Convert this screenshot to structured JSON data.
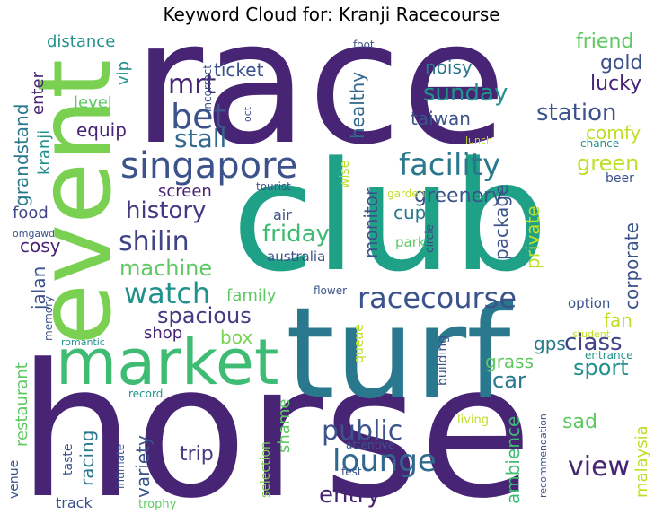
{
  "chart_data": {
    "type": "wordcloud",
    "title": "Keyword Cloud for: Kranji Racecourse",
    "words": [
      {
        "text": "race",
        "weight": 100,
        "color": "#482475"
      },
      {
        "text": "horse",
        "weight": 98,
        "color": "#482475"
      },
      {
        "text": "club",
        "weight": 85,
        "color": "#1fa187"
      },
      {
        "text": "turf",
        "weight": 82,
        "color": "#2a788e"
      },
      {
        "text": "event",
        "weight": 70,
        "color": "#7ad151"
      },
      {
        "text": "market",
        "weight": 52,
        "color": "#3fbc73"
      },
      {
        "text": "singapore",
        "weight": 34,
        "color": "#3b528b"
      },
      {
        "text": "bet",
        "weight": 32,
        "color": "#3b528b"
      },
      {
        "text": "facility",
        "weight": 30,
        "color": "#2a788e"
      },
      {
        "text": "racecourse",
        "weight": 30,
        "color": "#3b528b"
      },
      {
        "text": "watch",
        "weight": 30,
        "color": "#21918c"
      },
      {
        "text": "lounge",
        "weight": 29,
        "color": "#31688e"
      },
      {
        "text": "mrt",
        "weight": 28,
        "color": "#482475"
      },
      {
        "text": "station",
        "weight": 26,
        "color": "#3b528b"
      },
      {
        "text": "shilin",
        "weight": 28,
        "color": "#414487"
      },
      {
        "text": "public",
        "weight": 26,
        "color": "#3b528b"
      },
      {
        "text": "stall",
        "weight": 26,
        "color": "#31688e"
      },
      {
        "text": "history",
        "weight": 24,
        "color": "#443983"
      },
      {
        "text": "friday",
        "weight": 24,
        "color": "#3fbc73"
      },
      {
        "text": "machine",
        "weight": 23,
        "color": "#5ec962"
      },
      {
        "text": "sunday",
        "weight": 24,
        "color": "#21918c"
      },
      {
        "text": "class",
        "weight": 24,
        "color": "#414487"
      },
      {
        "text": "view",
        "weight": 26,
        "color": "#482475"
      },
      {
        "text": "spacious",
        "weight": 22,
        "color": "#443983"
      },
      {
        "text": "entry",
        "weight": 24,
        "color": "#482475"
      },
      {
        "text": "car",
        "weight": 22,
        "color": "#2a788e"
      },
      {
        "text": "sport",
        "weight": 22,
        "color": "#21918c"
      },
      {
        "text": "green",
        "weight": 22,
        "color": "#bddf26"
      },
      {
        "text": "greenery",
        "weight": 20,
        "color": "#3b528b"
      },
      {
        "text": "cup",
        "weight": 18,
        "color": "#2a788e"
      },
      {
        "text": "taiwan",
        "weight": 18,
        "color": "#3b528b"
      },
      {
        "text": "comfy",
        "weight": 19,
        "color": "#bddf26"
      },
      {
        "text": "friend",
        "weight": 19,
        "color": "#5ec962"
      },
      {
        "text": "gold",
        "weight": 19,
        "color": "#3b528b"
      },
      {
        "text": "lucky",
        "weight": 19,
        "color": "#482475"
      },
      {
        "text": "noisy",
        "weight": 18,
        "color": "#2a788e"
      },
      {
        "text": "trip",
        "weight": 20,
        "color": "#443983"
      },
      {
        "text": "family",
        "weight": 18,
        "color": "#5ec962"
      },
      {
        "text": "box",
        "weight": 18,
        "color": "#7ad151"
      },
      {
        "text": "sad",
        "weight": 18,
        "color": "#5ec962"
      },
      {
        "text": "ambience",
        "weight": 18,
        "color": "#3fbc73"
      },
      {
        "text": "grass",
        "weight": 17,
        "color": "#5ec962"
      },
      {
        "text": "gps",
        "weight": 17,
        "color": "#2a788e"
      },
      {
        "text": "fan",
        "weight": 17,
        "color": "#bddf26"
      },
      {
        "text": "corporate",
        "weight": 17,
        "color": "#3b528b"
      },
      {
        "text": "private",
        "weight": 17,
        "color": "#bddf26"
      },
      {
        "text": "package",
        "weight": 17,
        "color": "#3b528b"
      },
      {
        "text": "monitor",
        "weight": 17,
        "color": "#3b528b"
      },
      {
        "text": "healthy",
        "weight": 17,
        "color": "#31688e"
      },
      {
        "text": "jalan",
        "weight": 18,
        "color": "#3b528b"
      },
      {
        "text": "cosy",
        "weight": 18,
        "color": "#482475"
      },
      {
        "text": "grandstand",
        "weight": 18,
        "color": "#2a788e"
      },
      {
        "text": "kranji",
        "weight": 16,
        "color": "#21918c"
      },
      {
        "text": "ticket",
        "weight": 17,
        "color": "#3b528b"
      },
      {
        "text": "distance",
        "weight": 16,
        "color": "#21918c"
      },
      {
        "text": "enter",
        "weight": 15,
        "color": "#482475"
      },
      {
        "text": "vip",
        "weight": 16,
        "color": "#21918c"
      },
      {
        "text": "level",
        "weight": 15,
        "color": "#5ec962"
      },
      {
        "text": "equip",
        "weight": 16,
        "color": "#482475"
      },
      {
        "text": "screen",
        "weight": 15,
        "color": "#482475"
      },
      {
        "text": "food",
        "weight": 15,
        "color": "#414487"
      },
      {
        "text": "restaurant",
        "weight": 15,
        "color": "#5ec962"
      },
      {
        "text": "racing",
        "weight": 16,
        "color": "#2a788e"
      },
      {
        "text": "variety",
        "weight": 16,
        "color": "#3b528b"
      },
      {
        "text": "shame",
        "weight": 16,
        "color": "#5ec962"
      },
      {
        "text": "shop",
        "weight": 15,
        "color": "#482475"
      },
      {
        "text": "malaysia",
        "weight": 15,
        "color": "#bddf26"
      },
      {
        "text": "taste",
        "weight": 13,
        "color": "#3b528b"
      },
      {
        "text": "track",
        "weight": 13,
        "color": "#3b528b"
      },
      {
        "text": "venue",
        "weight": 13,
        "color": "#3b528b"
      },
      {
        "text": "memory",
        "weight": 12,
        "color": "#3b528b"
      },
      {
        "text": "option",
        "weight": 13,
        "color": "#3b528b"
      },
      {
        "text": "australia",
        "weight": 13,
        "color": "#3b528b"
      },
      {
        "text": "air",
        "weight": 14,
        "color": "#3b528b"
      },
      {
        "text": "park",
        "weight": 13,
        "color": "#5ec962"
      },
      {
        "text": "selection",
        "weight": 13,
        "color": "#7ad151"
      },
      {
        "text": "building",
        "weight": 12,
        "color": "#3b528b"
      },
      {
        "text": "queue",
        "weight": 12,
        "color": "#bddf26"
      },
      {
        "text": "wise",
        "weight": 12,
        "color": "#bddf26"
      },
      {
        "text": "tourist",
        "weight": 10,
        "color": "#3b528b"
      },
      {
        "text": "garden",
        "weight": 10,
        "color": "#bddf26"
      },
      {
        "text": "circle",
        "weight": 10,
        "color": "#414487"
      },
      {
        "text": "flower",
        "weight": 10,
        "color": "#3b528b"
      },
      {
        "text": "incorrect",
        "weight": 10,
        "color": "#3b528b"
      },
      {
        "text": "oct",
        "weight": 9,
        "color": "#3b528b"
      },
      {
        "text": "foot",
        "weight": 10,
        "color": "#3b528b"
      },
      {
        "text": "lunch",
        "weight": 9,
        "color": "#bddf26"
      },
      {
        "text": "chance",
        "weight": 10,
        "color": "#21918c"
      },
      {
        "text": "beer",
        "weight": 12,
        "color": "#3b528b"
      },
      {
        "text": "omgawd",
        "weight": 10,
        "color": "#3b528b"
      },
      {
        "text": "romantic",
        "weight": 10,
        "color": "#21918c"
      },
      {
        "text": "record",
        "weight": 11,
        "color": "#21918c"
      },
      {
        "text": "student",
        "weight": 10,
        "color": "#bddf26"
      },
      {
        "text": "entrance",
        "weight": 10,
        "color": "#21918c"
      },
      {
        "text": "living",
        "weight": 11,
        "color": "#bddf26"
      },
      {
        "text": "attentive",
        "weight": 10,
        "color": "#3b528b"
      },
      {
        "text": "fest",
        "weight": 10,
        "color": "#3b528b"
      },
      {
        "text": "intimate",
        "weight": 10,
        "color": "#3b528b"
      },
      {
        "text": "recommendation",
        "weight": 10,
        "color": "#3b528b"
      },
      {
        "text": "trophy",
        "weight": 10,
        "color": "#5ec962"
      }
    ]
  }
}
